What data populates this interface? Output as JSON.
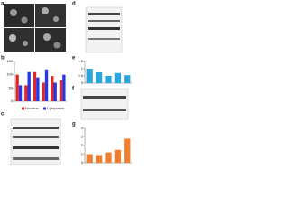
{
  "panels": {
    "a": "a",
    "b": "b",
    "c": "c",
    "d": "d",
    "e": "e",
    "f": "f",
    "g": "g"
  },
  "chart_data": [
    {
      "type": "bar",
      "categories": [
        null,
        null,
        null,
        null,
        null,
        null
      ],
      "series": [
        {
          "name": "Nucleus",
          "color": "#e02828",
          "values": [
            100,
            60,
            110,
            70,
            95,
            80
          ]
        },
        {
          "name": "Cytoplasm",
          "color": "#2838e0",
          "values": [
            60,
            110,
            90,
            120,
            70,
            100
          ]
        }
      ],
      "ylim": [
        0,
        150
      ],
      "yticks": [
        0,
        50,
        100,
        150
      ]
    },
    {
      "type": "bar",
      "categories": [
        null,
        null,
        null,
        null,
        null
      ],
      "color": "#29a8e0",
      "values": [
        1,
        0.75,
        0.5,
        0.7,
        0.55
      ],
      "ylim": [
        0,
        1.5
      ],
      "yticks": [
        0,
        0.5,
        1,
        1.5
      ]
    },
    {
      "type": "bar",
      "categories": [
        null,
        null,
        null,
        null,
        null
      ],
      "color": "#f08030",
      "values": [
        1,
        0.9,
        1.2,
        1.5,
        2.8
      ],
      "ylim": [
        0,
        4
      ],
      "yticks": [
        0,
        1,
        2,
        3,
        4
      ]
    }
  ]
}
